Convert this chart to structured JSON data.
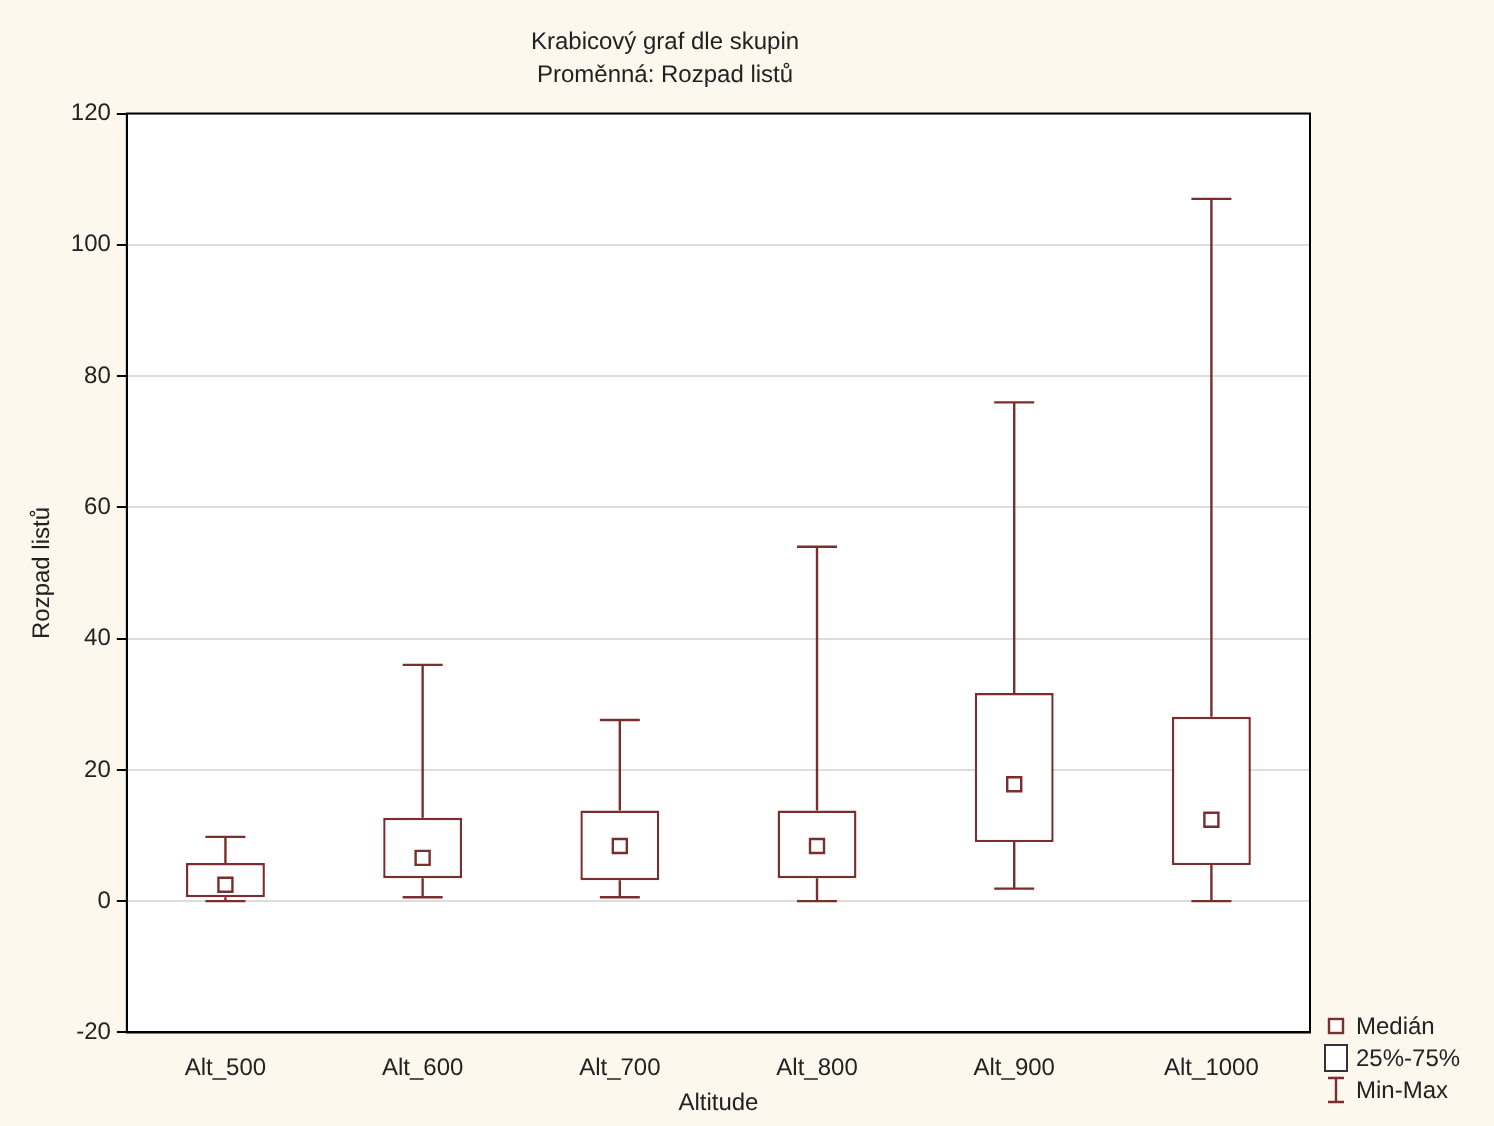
{
  "chart_data": {
    "type": "box",
    "title": "Krabicový graf dle skupin",
    "subtitle": "Proměnná: Rozpad listů",
    "xlabel": "Altitude",
    "ylabel": "Rozpad listů",
    "categories": [
      "Alt_500",
      "Alt_600",
      "Alt_700",
      "Alt_800",
      "Alt_900",
      "Alt_1000"
    ],
    "series": [
      {
        "color": "#7a2e2e",
        "boxes": [
          {
            "low": 0,
            "q1": 0.6,
            "median": 2.5,
            "q3": 5.8,
            "high": 9.8
          },
          {
            "low": 0.6,
            "q1": 3.5,
            "median": 6.6,
            "q3": 12.7,
            "high": 36
          },
          {
            "low": 0.6,
            "q1": 3.2,
            "median": 8.4,
            "q3": 13.8,
            "high": 27.6
          },
          {
            "low": 0,
            "q1": 3.5,
            "median": 8.4,
            "q3": 13.8,
            "high": 54
          },
          {
            "low": 1.9,
            "q1": 9,
            "median": 17.8,
            "q3": 31.7,
            "high": 76
          },
          {
            "low": 0,
            "q1": 5.5,
            "median": 12.4,
            "q3": 28.1,
            "high": 107
          }
        ]
      }
    ],
    "ylim": [
      -20,
      120
    ],
    "yticks": [
      -20,
      0,
      20,
      40,
      60,
      80,
      100,
      120
    ],
    "grid": "y",
    "annotations": [
      "Medián",
      "25%-75%",
      "Min-Max"
    ]
  }
}
